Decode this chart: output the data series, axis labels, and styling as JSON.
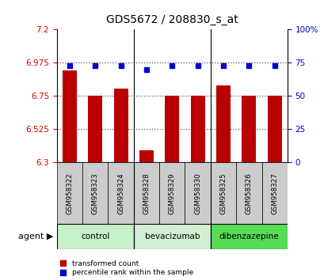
{
  "title": "GDS5672 / 208830_s_at",
  "samples": [
    "GSM958322",
    "GSM958323",
    "GSM958324",
    "GSM958328",
    "GSM958329",
    "GSM958330",
    "GSM958325",
    "GSM958326",
    "GSM958327"
  ],
  "red_values": [
    6.92,
    6.75,
    6.8,
    6.38,
    6.75,
    6.75,
    6.82,
    6.75,
    6.75
  ],
  "blue_values": [
    73,
    73,
    73,
    70,
    73,
    73,
    73,
    73,
    73
  ],
  "ylim_left": [
    6.3,
    7.2
  ],
  "ylim_right": [
    0,
    100
  ],
  "yticks_left": [
    6.3,
    6.525,
    6.75,
    6.975,
    7.2
  ],
  "yticks_right": [
    0,
    25,
    50,
    75,
    100
  ],
  "ytick_labels_left": [
    "6.3",
    "6.525",
    "6.75",
    "6.975",
    "7.2"
  ],
  "ytick_labels_right": [
    "0",
    "25",
    "50",
    "75",
    "100%"
  ],
  "groups": [
    {
      "label": "control",
      "start": 0,
      "end": 3,
      "color": "#c8f0c8"
    },
    {
      "label": "bevacizumab",
      "start": 3,
      "end": 6,
      "color": "#d4f0d4"
    },
    {
      "label": "dibenzazepine",
      "start": 6,
      "end": 9,
      "color": "#55dd55"
    }
  ],
  "agent_label": "agent",
  "red_color": "#bb0000",
  "blue_color": "#0000cc",
  "bar_width": 0.55,
  "grid_color": "#555555",
  "bg_color": "#ffffff",
  "sample_area_color": "#cccccc",
  "left_label_color": "#dd0000",
  "right_label_color": "#0000dd",
  "legend_red_label": "transformed count",
  "legend_blue_label": "percentile rank within the sample"
}
